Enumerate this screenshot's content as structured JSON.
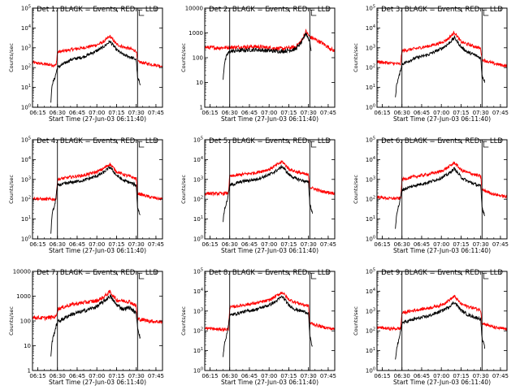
{
  "chart_data": [
    {
      "type": "line",
      "title": "Det 1: BLACK = Events, RED = LLD",
      "xlabel": "Start Time (27-Jun-03 06:11:40)",
      "ylabel": "Counts/sec",
      "yscale": "log",
      "ylim": [
        1,
        100000
      ],
      "xlim": [
        "06:11",
        "07:50"
      ],
      "xticks": [
        "06:15",
        "06:30",
        "06:45",
        "07:00",
        "07:15",
        "07:30",
        "07:45"
      ],
      "yticks": [
        "10^0",
        "10^1",
        "10^2",
        "10^3",
        "10^4",
        "10^5"
      ],
      "vlines": [
        "06:30",
        "07:31"
      ],
      "series": [
        {
          "color": "#ff0000",
          "x": [
            "06:11",
            "06:20",
            "06:29",
            "06:30",
            "06:40",
            "06:50",
            "07:00",
            "07:05",
            "07:10",
            "07:15",
            "07:20",
            "07:25",
            "07:30",
            "07:31",
            "07:40",
            "07:50"
          ],
          "values": [
            180,
            150,
            130,
            600,
            800,
            1000,
            1400,
            2000,
            3800,
            1500,
            1100,
            900,
            700,
            200,
            150,
            120
          ]
        },
        {
          "color": "#000000",
          "x": [
            "06:25",
            "06:26",
            "06:28",
            "06:30",
            "06:40",
            "06:50",
            "07:00",
            "07:05",
            "07:10",
            "07:15",
            "07:20",
            "07:25",
            "07:30",
            "07:31",
            "07:33"
          ],
          "values": [
            2,
            15,
            30,
            100,
            250,
            350,
            700,
            1100,
            2100,
            800,
            450,
            350,
            250,
            30,
            15
          ]
        }
      ]
    },
    {
      "type": "line",
      "title": "Det 2: BLACK = Events, RED = LLD",
      "xlabel": "Start Time (27-Jun-03 06:11:40)",
      "ylabel": "Counts/sec",
      "yscale": "log",
      "ylim": [
        1,
        10000
      ],
      "xlim": [
        "06:11",
        "07:50"
      ],
      "xticks": [
        "06:15",
        "06:30",
        "06:45",
        "07:00",
        "07:15",
        "07:30",
        "07:45"
      ],
      "yticks": [
        "1",
        "10",
        "100",
        "1000",
        "10000"
      ],
      "vlines": [
        "06:30",
        "07:31"
      ],
      "series": [
        {
          "color": "#ff0000",
          "x": [
            "06:11",
            "06:20",
            "06:29",
            "06:40",
            "06:50",
            "07:00",
            "07:10",
            "07:20",
            "07:25",
            "07:28",
            "07:31",
            "07:40",
            "07:50"
          ],
          "values": [
            260,
            250,
            260,
            270,
            280,
            250,
            230,
            270,
            500,
            1150,
            700,
            400,
            180
          ]
        },
        {
          "color": "#000000",
          "x": [
            "06:25",
            "06:26",
            "06:28",
            "06:30",
            "06:40",
            "06:50",
            "07:00",
            "07:10",
            "07:20",
            "07:25",
            "07:28",
            "07:31",
            "07:32"
          ],
          "values": [
            15,
            60,
            130,
            180,
            200,
            210,
            190,
            180,
            220,
            430,
            1000,
            450,
            200
          ]
        }
      ]
    },
    {
      "type": "line",
      "title": "Det 3: BLACK = Events, RED = LLD",
      "xlabel": "Start Time (27-Jun-03 06:11:40)",
      "ylabel": "Counts/sec",
      "yscale": "log",
      "ylim": [
        1,
        100000
      ],
      "xlim": [
        "06:11",
        "07:50"
      ],
      "xticks": [
        "06:15",
        "06:30",
        "06:45",
        "07:00",
        "07:15",
        "07:30",
        "07:45"
      ],
      "yticks": [
        "10^0",
        "10^1",
        "10^2",
        "10^3",
        "10^4",
        "10^5"
      ],
      "vlines": [
        "06:30",
        "07:31"
      ],
      "series": [
        {
          "color": "#ff0000",
          "x": [
            "06:11",
            "06:20",
            "06:29",
            "06:30",
            "06:40",
            "06:50",
            "07:00",
            "07:05",
            "07:10",
            "07:15",
            "07:20",
            "07:25",
            "07:30",
            "07:31",
            "07:40",
            "07:50"
          ],
          "values": [
            200,
            170,
            150,
            700,
            900,
            1200,
            1800,
            2800,
            6000,
            2000,
            1500,
            1200,
            900,
            250,
            160,
            120
          ]
        },
        {
          "color": "#000000",
          "x": [
            "06:25",
            "06:26",
            "06:28",
            "06:30",
            "06:40",
            "06:50",
            "07:00",
            "07:05",
            "07:10",
            "07:15",
            "07:20",
            "07:25",
            "07:30",
            "07:31",
            "07:33"
          ],
          "values": [
            3,
            15,
            40,
            150,
            300,
            450,
            900,
            1500,
            3200,
            1100,
            600,
            450,
            300,
            40,
            20
          ]
        }
      ]
    },
    {
      "type": "line",
      "title": "Det 4: BLACK = Events, RED = LLD",
      "xlabel": "Start Time (27-Jun-03 06:11:40)",
      "ylabel": "Counts/sec",
      "yscale": "log",
      "ylim": [
        1,
        100000
      ],
      "xlim": [
        "06:11",
        "07:50"
      ],
      "xticks": [
        "06:15",
        "06:30",
        "06:45",
        "07:00",
        "07:15",
        "07:30",
        "07:45"
      ],
      "yticks": [
        "10^0",
        "10^1",
        "10^2",
        "10^3",
        "10^4",
        "10^5"
      ],
      "vlines": [
        "06:30",
        "07:31"
      ],
      "series": [
        {
          "color": "#ff0000",
          "x": [
            "06:11",
            "06:20",
            "06:29",
            "06:30",
            "06:40",
            "06:50",
            "07:00",
            "07:05",
            "07:10",
            "07:15",
            "07:20",
            "07:25",
            "07:30",
            "07:31",
            "07:40",
            "07:50"
          ],
          "values": [
            110,
            100,
            100,
            1000,
            1300,
            1600,
            2400,
            3500,
            6000,
            2500,
            1800,
            1400,
            1100,
            200,
            130,
            100
          ]
        },
        {
          "color": "#000000",
          "x": [
            "06:25",
            "06:26",
            "06:28",
            "06:30",
            "06:40",
            "06:50",
            "07:00",
            "07:05",
            "07:10",
            "07:15",
            "07:20",
            "07:25",
            "07:30",
            "07:31",
            "07:33"
          ],
          "values": [
            2,
            20,
            50,
            500,
            700,
            900,
            1500,
            2200,
            4200,
            1600,
            900,
            700,
            500,
            40,
            15
          ]
        }
      ]
    },
    {
      "type": "line",
      "title": "Det 5: BLACK = Events, RED = LLD",
      "xlabel": "Start Time (27-Jun-03 06:11:40)",
      "ylabel": "Counts/sec",
      "yscale": "log",
      "ylim": [
        1,
        100000
      ],
      "xlim": [
        "06:11",
        "07:50"
      ],
      "xticks": [
        "06:15",
        "06:30",
        "06:45",
        "07:00",
        "07:15",
        "07:30",
        "07:45"
      ],
      "yticks": [
        "10^0",
        "10^1",
        "10^2",
        "10^3",
        "10^4",
        "10^5"
      ],
      "vlines": [
        "06:30",
        "07:31"
      ],
      "series": [
        {
          "color": "#ff0000",
          "x": [
            "06:11",
            "06:20",
            "06:29",
            "06:30",
            "06:40",
            "06:50",
            "07:00",
            "07:05",
            "07:10",
            "07:15",
            "07:20",
            "07:25",
            "07:30",
            "07:31",
            "07:40",
            "07:50"
          ],
          "values": [
            200,
            190,
            200,
            1400,
            1800,
            2200,
            3200,
            5000,
            8000,
            3400,
            2500,
            2000,
            1600,
            400,
            250,
            200
          ]
        },
        {
          "color": "#000000",
          "x": [
            "06:25",
            "06:26",
            "06:28",
            "06:30",
            "06:40",
            "06:50",
            "07:00",
            "07:05",
            "07:10",
            "07:15",
            "07:20",
            "07:25",
            "07:30",
            "07:31",
            "07:33"
          ],
          "values": [
            8,
            30,
            80,
            500,
            800,
            1000,
            1700,
            2600,
            4500,
            1800,
            1100,
            900,
            700,
            60,
            20
          ]
        }
      ]
    },
    {
      "type": "line",
      "title": "Det 6: BLACK = Events, RED = LLD",
      "xlabel": "Start Time (27-Jun-03 06:11:40)",
      "ylabel": "Counts/sec",
      "yscale": "log",
      "ylim": [
        1,
        100000
      ],
      "xlim": [
        "06:11",
        "07:50"
      ],
      "xticks": [
        "06:15",
        "06:30",
        "06:45",
        "07:00",
        "07:15",
        "07:30",
        "07:45"
      ],
      "yticks": [
        "10^0",
        "10^1",
        "10^2",
        "10^3",
        "10^4",
        "10^5"
      ],
      "vlines": [
        "06:30",
        "07:31"
      ],
      "series": [
        {
          "color": "#ff0000",
          "x": [
            "06:11",
            "06:20",
            "06:29",
            "06:30",
            "06:40",
            "06:50",
            "07:00",
            "07:05",
            "07:10",
            "07:15",
            "07:20",
            "07:25",
            "07:30",
            "07:31",
            "07:40",
            "07:50"
          ],
          "values": [
            130,
            110,
            110,
            1000,
            1400,
            1800,
            2600,
            4000,
            7000,
            3000,
            2200,
            1800,
            1400,
            300,
            180,
            130
          ]
        },
        {
          "color": "#000000",
          "x": [
            "06:25",
            "06:26",
            "06:28",
            "06:30",
            "06:40",
            "06:50",
            "07:00",
            "07:05",
            "07:10",
            "07:15",
            "07:20",
            "07:25",
            "07:30",
            "07:31",
            "07:33"
          ],
          "values": [
            3,
            20,
            60,
            300,
            500,
            700,
            1200,
            1800,
            3500,
            1300,
            800,
            600,
            450,
            40,
            15
          ]
        }
      ]
    },
    {
      "type": "line",
      "title": "Det 7: BLACK = Events, RED = LLD",
      "xlabel": "Start Time (27-Jun-03 06:11:40)",
      "ylabel": "Counts/sec",
      "yscale": "log",
      "ylim": [
        1,
        10000
      ],
      "xlim": [
        "06:11",
        "07:50"
      ],
      "xticks": [
        "06:15",
        "06:30",
        "06:45",
        "07:00",
        "07:15",
        "07:30",
        "07:45"
      ],
      "yticks": [
        "1",
        "10",
        "100",
        "1000",
        "10000"
      ],
      "vlines": [
        "06:30",
        "07:31"
      ],
      "series": [
        {
          "color": "#ff0000",
          "x": [
            "06:11",
            "06:20",
            "06:29",
            "06:30",
            "06:40",
            "06:50",
            "07:00",
            "07:05",
            "07:10",
            "07:15",
            "07:20",
            "07:25",
            "07:30",
            "07:31",
            "07:40",
            "07:50"
          ],
          "values": [
            140,
            130,
            150,
            300,
            450,
            550,
            650,
            900,
            1500,
            700,
            650,
            600,
            400,
            120,
            100,
            90
          ]
        },
        {
          "color": "#000000",
          "x": [
            "06:25",
            "06:26",
            "06:28",
            "06:30",
            "06:40",
            "06:50",
            "07:00",
            "07:05",
            "07:10",
            "07:15",
            "07:20",
            "07:25",
            "07:30",
            "07:31",
            "07:33"
          ],
          "values": [
            4,
            15,
            40,
            90,
            180,
            250,
            380,
            600,
            1000,
            450,
            300,
            350,
            200,
            60,
            20
          ]
        }
      ]
    },
    {
      "type": "line",
      "title": "Det 8: BLACK = Events, RED = LLD",
      "xlabel": "Start Time (27-Jun-03 06:11:40)",
      "ylabel": "Counts/sec",
      "yscale": "log",
      "ylim": [
        1,
        100000
      ],
      "xlim": [
        "06:11",
        "07:50"
      ],
      "xticks": [
        "06:15",
        "06:30",
        "06:45",
        "07:00",
        "07:15",
        "07:30",
        "07:45"
      ],
      "yticks": [
        "10^0",
        "10^1",
        "10^2",
        "10^3",
        "10^4",
        "10^5"
      ],
      "vlines": [
        "06:30",
        "07:31"
      ],
      "series": [
        {
          "color": "#ff0000",
          "x": [
            "06:11",
            "06:20",
            "06:29",
            "06:30",
            "06:40",
            "06:50",
            "07:00",
            "07:05",
            "07:10",
            "07:15",
            "07:20",
            "07:25",
            "07:30",
            "07:31",
            "07:40",
            "07:50"
          ],
          "values": [
            140,
            120,
            120,
            1500,
            2000,
            2500,
            3500,
            5500,
            9000,
            3800,
            2800,
            2200,
            1800,
            250,
            160,
            120
          ]
        },
        {
          "color": "#000000",
          "x": [
            "06:25",
            "06:26",
            "06:28",
            "06:30",
            "06:40",
            "06:50",
            "07:00",
            "07:05",
            "07:10",
            "07:15",
            "07:20",
            "07:25",
            "07:30",
            "07:31",
            "07:33"
          ],
          "values": [
            5,
            25,
            70,
            600,
            900,
            1200,
            2000,
            3000,
            5500,
            2000,
            1200,
            1000,
            800,
            50,
            15
          ]
        }
      ]
    },
    {
      "type": "line",
      "title": "Det 9: BLACK = Events, RED = LLD",
      "xlabel": "Start Time (27-Jun-03 06:11:40)",
      "ylabel": "Counts/sec",
      "yscale": "log",
      "ylim": [
        1,
        100000
      ],
      "xlim": [
        "06:11",
        "07:50"
      ],
      "xticks": [
        "06:15",
        "06:30",
        "06:45",
        "07:00",
        "07:15",
        "07:30",
        "07:45"
      ],
      "yticks": [
        "10^0",
        "10^1",
        "10^2",
        "10^3",
        "10^4",
        "10^5"
      ],
      "vlines": [
        "06:30",
        "07:31"
      ],
      "series": [
        {
          "color": "#ff0000",
          "x": [
            "06:11",
            "06:20",
            "06:29",
            "06:30",
            "06:40",
            "06:50",
            "07:00",
            "07:05",
            "07:10",
            "07:15",
            "07:20",
            "07:25",
            "07:30",
            "07:31",
            "07:40",
            "07:50"
          ],
          "values": [
            150,
            130,
            130,
            800,
            1100,
            1400,
            2000,
            3200,
            5500,
            2300,
            1700,
            1400,
            1100,
            250,
            150,
            120
          ]
        },
        {
          "color": "#000000",
          "x": [
            "06:25",
            "06:26",
            "06:28",
            "06:30",
            "06:40",
            "06:50",
            "07:00",
            "07:05",
            "07:10",
            "07:15",
            "07:20",
            "07:25",
            "07:30",
            "07:31",
            "07:33"
          ],
          "values": [
            3,
            15,
            40,
            250,
            400,
            550,
            1000,
            1500,
            2800,
            1100,
            650,
            500,
            400,
            40,
            15
          ]
        }
      ]
    }
  ]
}
